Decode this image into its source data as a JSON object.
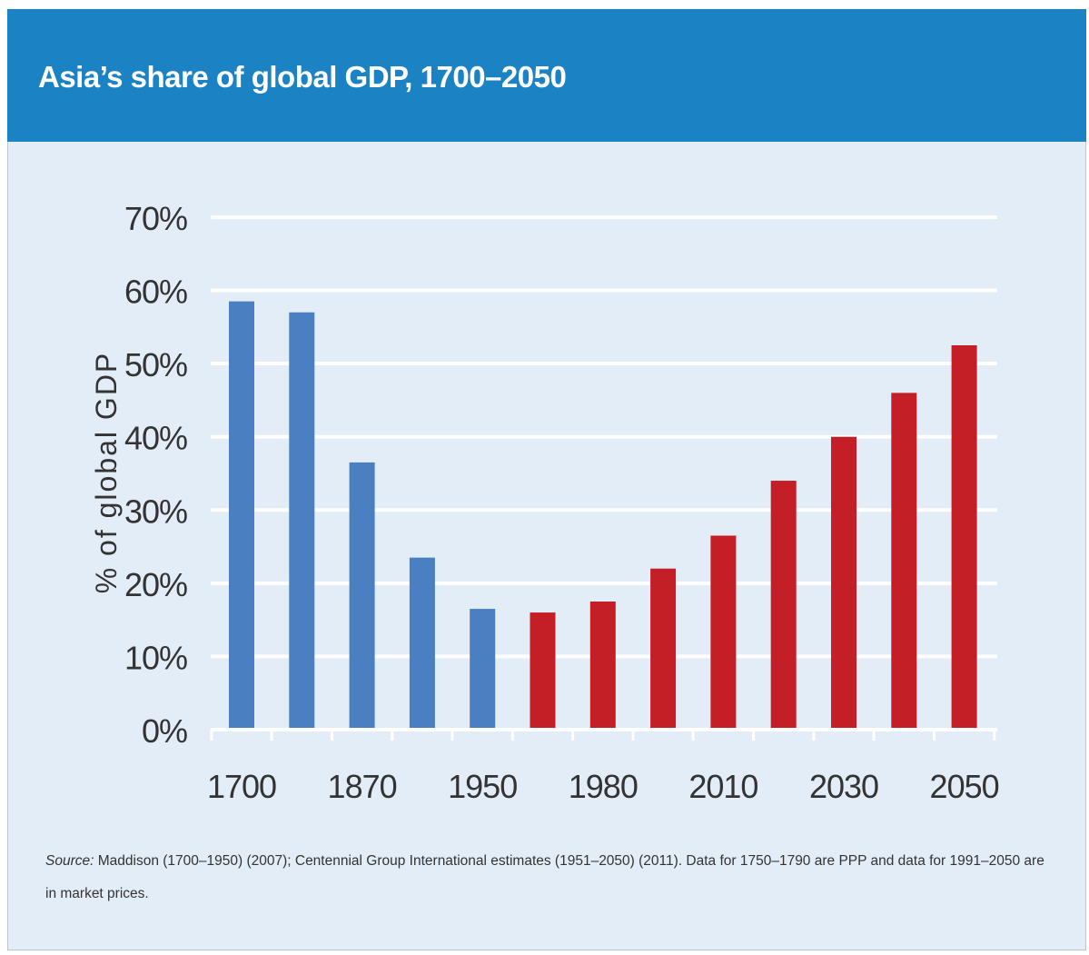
{
  "chart_data": {
    "type": "bar",
    "title": "Asia’s share of global GDP, 1700–2050",
    "ylabel": "% of global GDP",
    "xlabel": "",
    "ylim": [
      0,
      70
    ],
    "yticks": [
      "0%",
      "10%",
      "20%",
      "30%",
      "40%",
      "50%",
      "60%",
      "70%"
    ],
    "xtick_labels": [
      "1700",
      "1870",
      "1950",
      "1980",
      "2010",
      "2030",
      "2050"
    ],
    "grid": true,
    "colors": {
      "historical": "#4a7fc1",
      "projected": "#c41e27",
      "grid": "#ffffff",
      "background": "#e3edf7"
    },
    "bars": [
      {
        "value": 58.5,
        "group": "historical"
      },
      {
        "value": 57.0,
        "group": "historical"
      },
      {
        "value": 36.5,
        "group": "historical"
      },
      {
        "value": 23.5,
        "group": "historical"
      },
      {
        "value": 16.5,
        "group": "historical"
      },
      {
        "value": 16.0,
        "group": "projected"
      },
      {
        "value": 17.5,
        "group": "projected"
      },
      {
        "value": 22.0,
        "group": "projected"
      },
      {
        "value": 26.5,
        "group": "projected"
      },
      {
        "value": 34.0,
        "group": "projected"
      },
      {
        "value": 40.0,
        "group": "projected"
      },
      {
        "value": 46.0,
        "group": "projected"
      },
      {
        "value": 52.5,
        "group": "projected"
      }
    ]
  },
  "source": {
    "label": "Source:",
    "text": " Maddison (1700–1950) (2007); Centennial Group International estimates (1951–2050) (2011). Data for 1750–1790 are PPP and data for 1991–2050 are in market prices."
  }
}
